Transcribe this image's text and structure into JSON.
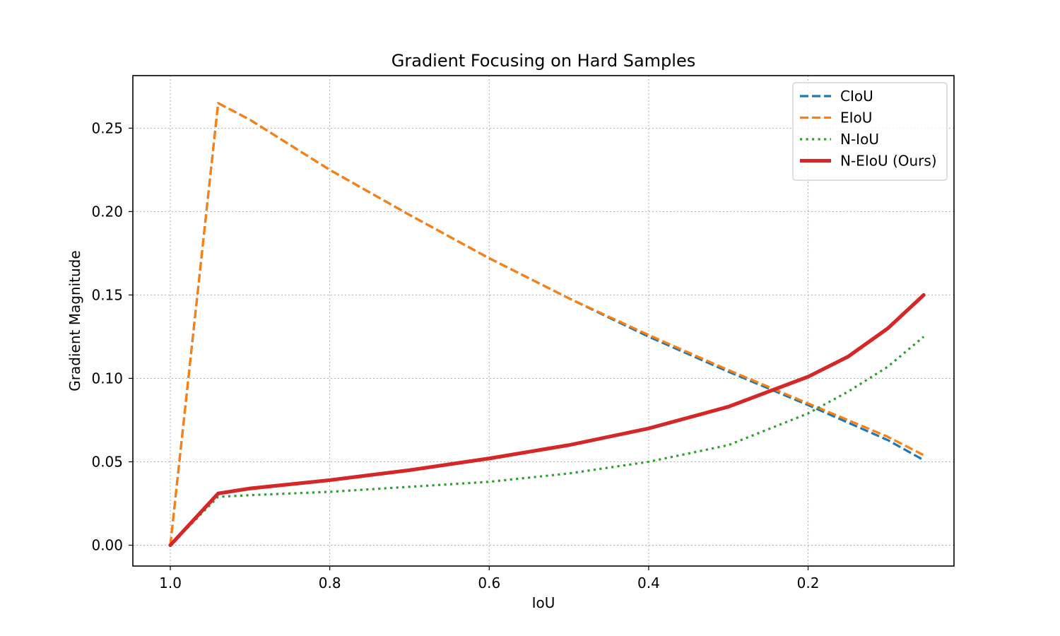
{
  "chart_data": {
    "type": "line",
    "title": "Gradient Focusing on Hard Samples",
    "xlabel": "IoU",
    "ylabel": "Gradient Magnitude",
    "xlim": [
      1.0,
      0.05
    ],
    "xlim_display": [
      1.047,
      0.017
    ],
    "x_inverted": true,
    "ylim": [
      -0.0125,
      0.2815
    ],
    "xticks": [
      1.0,
      0.8,
      0.6,
      0.4,
      0.2
    ],
    "xtick_labels": [
      "1.0",
      "0.8",
      "0.6",
      "0.4",
      "0.2"
    ],
    "yticks": [
      0.0,
      0.05,
      0.1,
      0.15,
      0.2,
      0.25
    ],
    "ytick_labels": [
      "0.00",
      "0.05",
      "0.10",
      "0.15",
      "0.20",
      "0.25"
    ],
    "grid": true,
    "legend_position": "top-right",
    "series": [
      {
        "name": "CIoU",
        "color": "#1f77b4",
        "style": "dashed",
        "x": [
          1.0,
          0.94,
          0.9,
          0.8,
          0.7,
          0.6,
          0.5,
          0.4,
          0.3,
          0.2,
          0.1,
          0.055
        ],
        "y": [
          0.0,
          0.265,
          0.255,
          0.225,
          0.198,
          0.172,
          0.148,
          0.125,
          0.104,
          0.084,
          0.063,
          0.051
        ]
      },
      {
        "name": "EIoU",
        "color": "#ff7f0e",
        "style": "dashed",
        "x": [
          1.0,
          0.94,
          0.9,
          0.8,
          0.7,
          0.6,
          0.5,
          0.4,
          0.3,
          0.2,
          0.1,
          0.055
        ],
        "y": [
          0.0,
          0.265,
          0.255,
          0.225,
          0.198,
          0.172,
          0.148,
          0.126,
          0.105,
          0.085,
          0.065,
          0.054
        ]
      },
      {
        "name": "N-IoU",
        "color": "#2ca02c",
        "style": "dotted",
        "x": [
          1.0,
          0.94,
          0.9,
          0.8,
          0.7,
          0.6,
          0.5,
          0.4,
          0.3,
          0.2,
          0.15,
          0.1,
          0.055
        ],
        "y": [
          0.0,
          0.029,
          0.03,
          0.032,
          0.035,
          0.038,
          0.043,
          0.05,
          0.06,
          0.079,
          0.092,
          0.107,
          0.125
        ]
      },
      {
        "name": "N-EIoU (Ours)",
        "color": "#d62728",
        "style": "solid",
        "x": [
          1.0,
          0.94,
          0.9,
          0.8,
          0.7,
          0.6,
          0.5,
          0.4,
          0.3,
          0.25,
          0.2,
          0.15,
          0.1,
          0.055
        ],
        "y": [
          0.0,
          0.031,
          0.034,
          0.039,
          0.045,
          0.052,
          0.06,
          0.07,
          0.083,
          0.092,
          0.101,
          0.113,
          0.13,
          0.15
        ]
      }
    ]
  }
}
